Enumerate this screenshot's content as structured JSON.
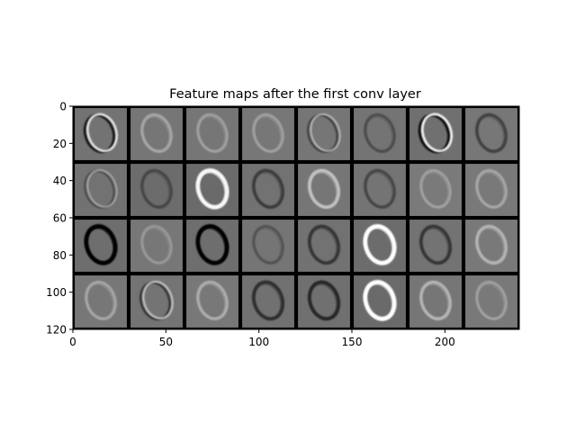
{
  "chart_data": {
    "type": "heatmap",
    "title": "Feature maps after the first conv layer",
    "xlabel": "",
    "ylabel": "",
    "xlim": [
      0,
      240
    ],
    "ylim": [
      120,
      0
    ],
    "x_ticks": [
      0,
      50,
      100,
      150,
      200
    ],
    "y_ticks": [
      0,
      20,
      40,
      60,
      80,
      100,
      120
    ],
    "grid": {
      "rows": 4,
      "cols": 8,
      "tile_size": 30,
      "border": "black"
    },
    "tiles": [
      {
        "row": 0,
        "col": 0,
        "bg": "#737373",
        "ink": "dark-light",
        "strength": 0.8
      },
      {
        "row": 0,
        "col": 1,
        "bg": "#767676",
        "ink": "light",
        "strength": 0.35
      },
      {
        "row": 0,
        "col": 2,
        "bg": "#767676",
        "ink": "light",
        "strength": 0.3
      },
      {
        "row": 0,
        "col": 3,
        "bg": "#777777",
        "ink": "light",
        "strength": 0.3
      },
      {
        "row": 0,
        "col": 4,
        "bg": "#767676",
        "ink": "dark-light",
        "strength": 0.45
      },
      {
        "row": 0,
        "col": 5,
        "bg": "#747474",
        "ink": "dark",
        "strength": 0.35
      },
      {
        "row": 0,
        "col": 6,
        "bg": "#707070",
        "ink": "dark-light",
        "strength": 0.9
      },
      {
        "row": 0,
        "col": 7,
        "bg": "#777777",
        "ink": "dark",
        "strength": 0.45
      },
      {
        "row": 1,
        "col": 0,
        "bg": "#727272",
        "ink": "dark-light",
        "strength": 0.35
      },
      {
        "row": 1,
        "col": 1,
        "bg": "#6c6c6c",
        "ink": "dark",
        "strength": 0.4
      },
      {
        "row": 1,
        "col": 2,
        "bg": "#6a6a6a",
        "ink": "light",
        "strength": 0.95
      },
      {
        "row": 1,
        "col": 3,
        "bg": "#727272",
        "ink": "dark",
        "strength": 0.5
      },
      {
        "row": 1,
        "col": 4,
        "bg": "#767676",
        "ink": "light",
        "strength": 0.55
      },
      {
        "row": 1,
        "col": 5,
        "bg": "#747474",
        "ink": "dark",
        "strength": 0.4
      },
      {
        "row": 1,
        "col": 6,
        "bg": "#7a7a7a",
        "ink": "light",
        "strength": 0.3
      },
      {
        "row": 1,
        "col": 7,
        "bg": "#797979",
        "ink": "light",
        "strength": 0.35
      },
      {
        "row": 2,
        "col": 0,
        "bg": "#6e6e6e",
        "ink": "dark",
        "strength": 1.0
      },
      {
        "row": 2,
        "col": 1,
        "bg": "#777777",
        "ink": "light",
        "strength": 0.25
      },
      {
        "row": 2,
        "col": 2,
        "bg": "#6e6e6e",
        "ink": "dark",
        "strength": 0.95
      },
      {
        "row": 2,
        "col": 3,
        "bg": "#757575",
        "ink": "dark",
        "strength": 0.3
      },
      {
        "row": 2,
        "col": 4,
        "bg": "#727272",
        "ink": "dark",
        "strength": 0.55
      },
      {
        "row": 2,
        "col": 5,
        "bg": "#6c6c6c",
        "ink": "light",
        "strength": 1.0
      },
      {
        "row": 2,
        "col": 6,
        "bg": "#737373",
        "ink": "dark",
        "strength": 0.55
      },
      {
        "row": 2,
        "col": 7,
        "bg": "#797979",
        "ink": "light",
        "strength": 0.45
      },
      {
        "row": 3,
        "col": 0,
        "bg": "#777777",
        "ink": "light",
        "strength": 0.35
      },
      {
        "row": 3,
        "col": 1,
        "bg": "#747474",
        "ink": "dark-light",
        "strength": 0.55
      },
      {
        "row": 3,
        "col": 2,
        "bg": "#787878",
        "ink": "light",
        "strength": 0.4
      },
      {
        "row": 3,
        "col": 3,
        "bg": "#717171",
        "ink": "dark",
        "strength": 0.6
      },
      {
        "row": 3,
        "col": 4,
        "bg": "#707070",
        "ink": "dark",
        "strength": 0.65
      },
      {
        "row": 3,
        "col": 5,
        "bg": "#6a6a6a",
        "ink": "light",
        "strength": 1.0
      },
      {
        "row": 3,
        "col": 6,
        "bg": "#767676",
        "ink": "light",
        "strength": 0.45
      },
      {
        "row": 3,
        "col": 7,
        "bg": "#797979",
        "ink": "light",
        "strength": 0.3
      }
    ]
  }
}
